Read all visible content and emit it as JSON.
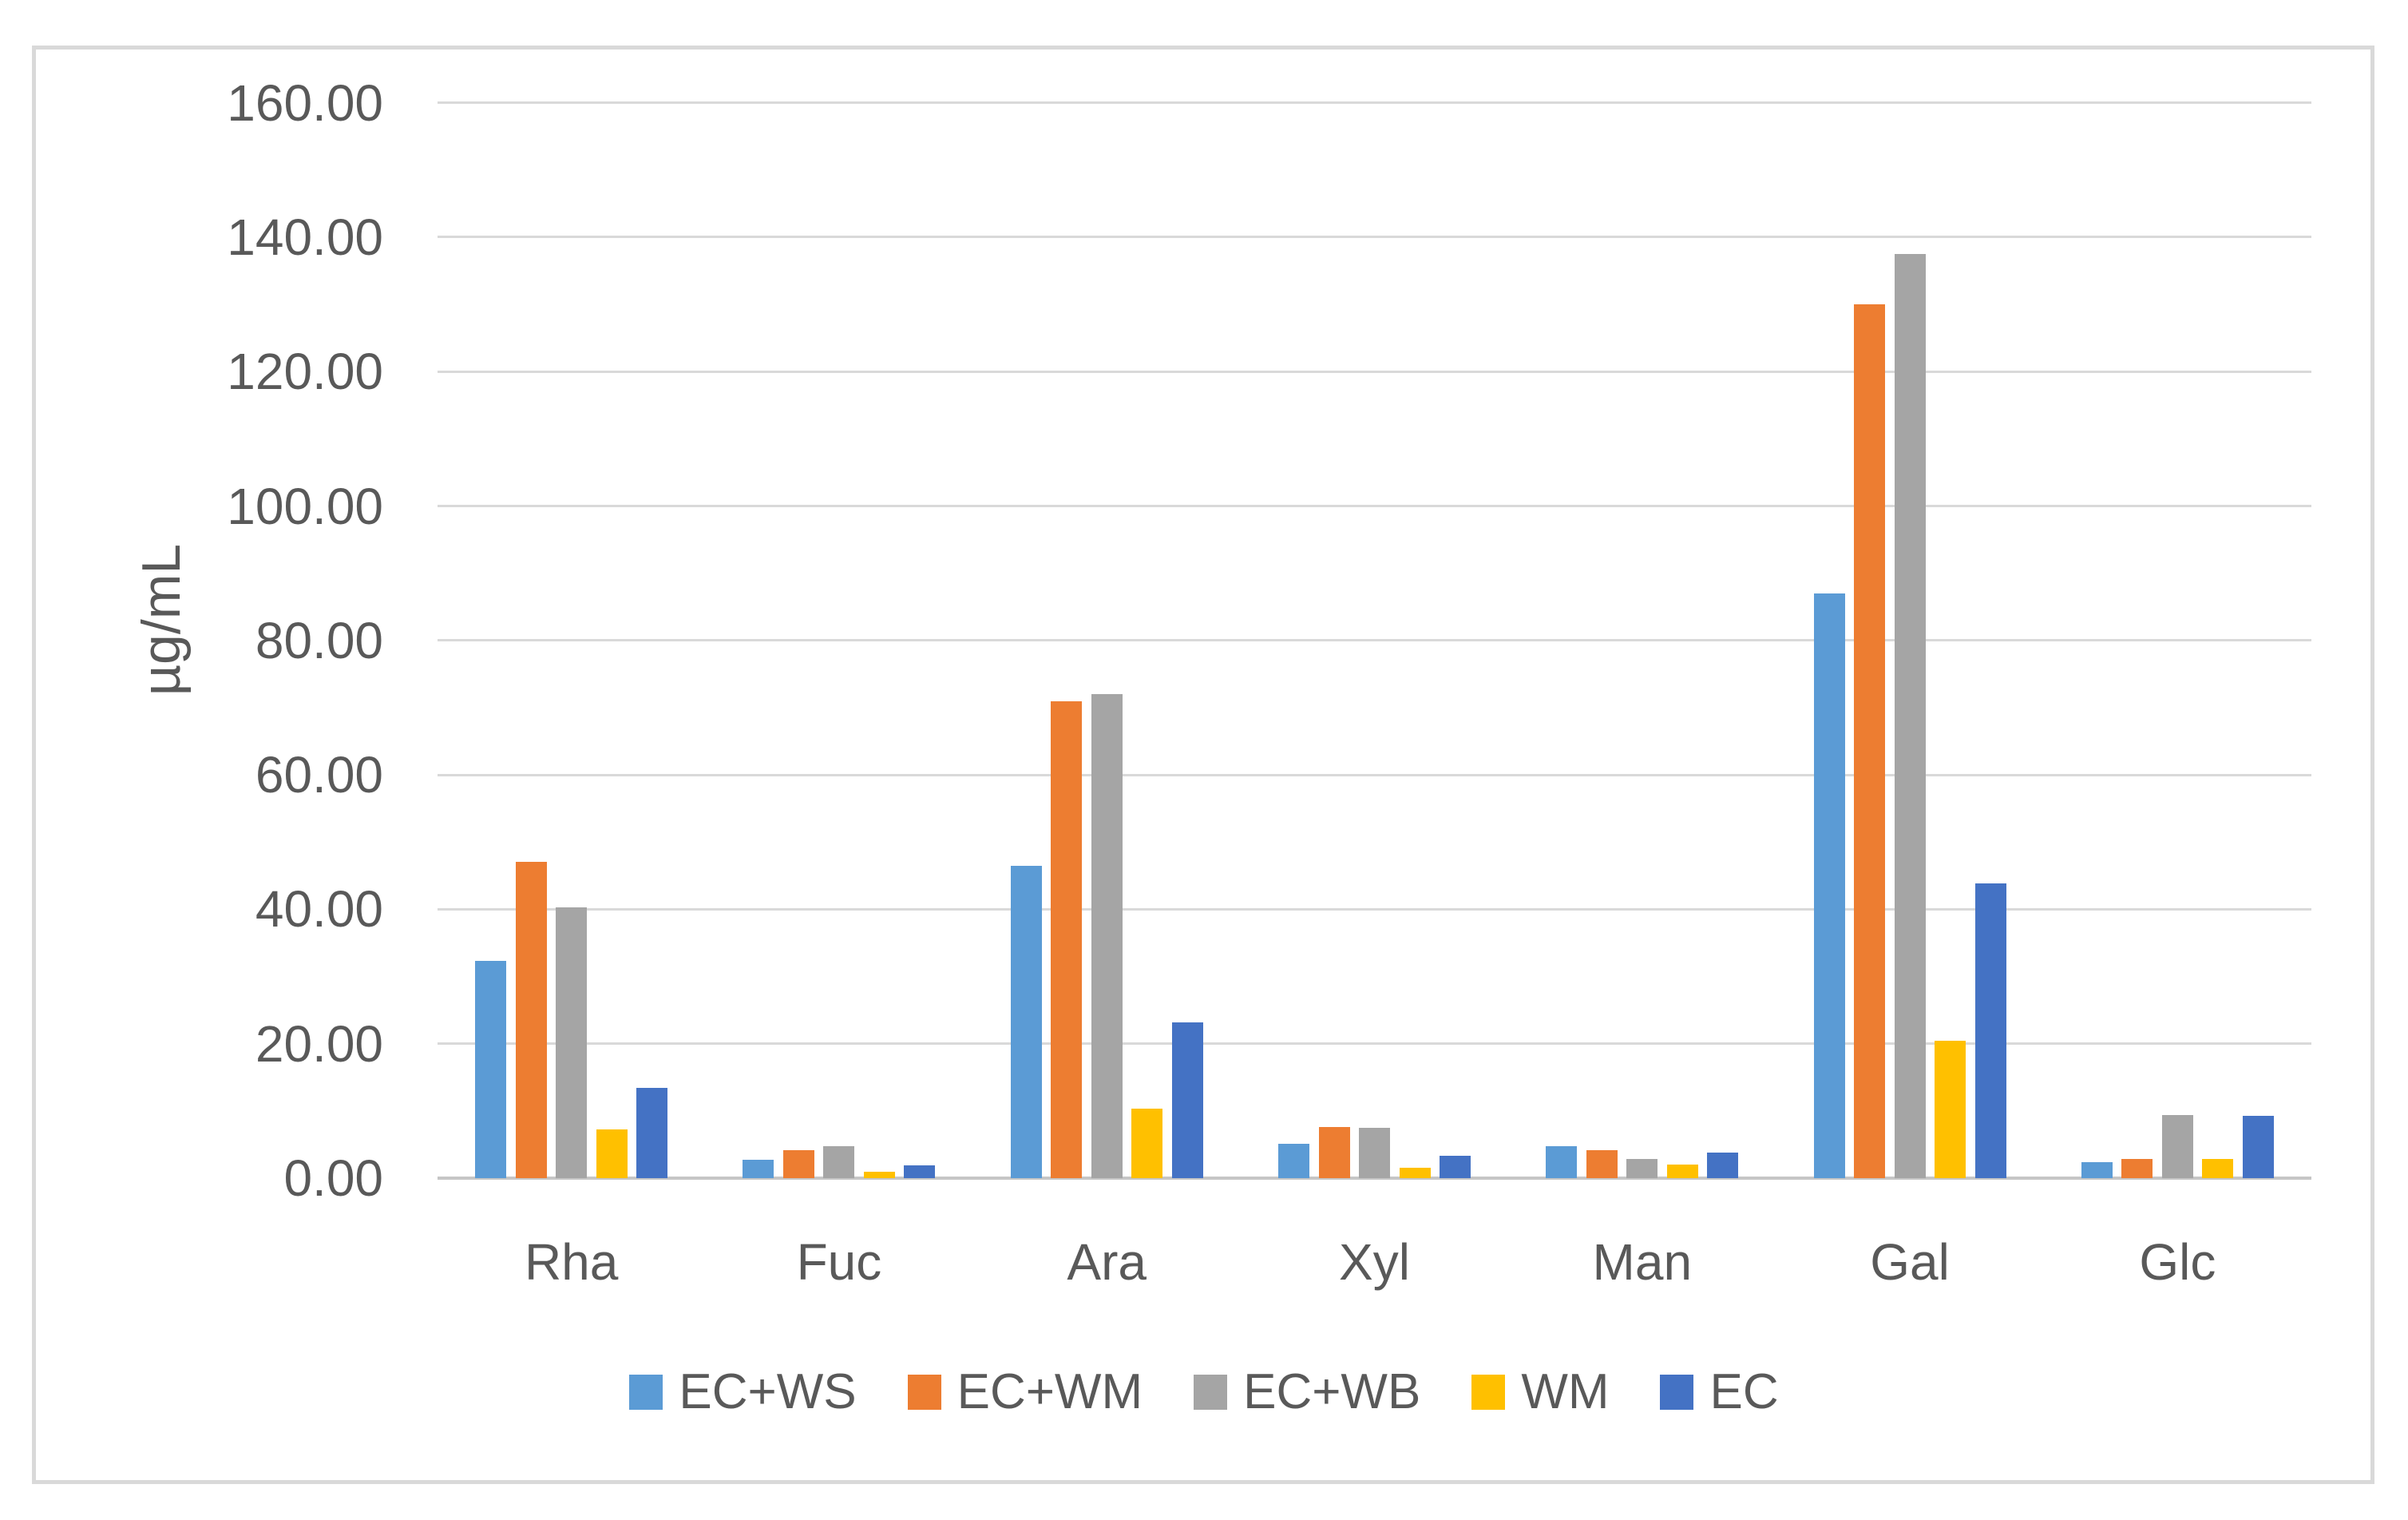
{
  "chart_data": {
    "type": "bar",
    "title": "",
    "ylabel": "µg/mL",
    "xlabel": "",
    "categories": [
      "Rha",
      "Fuc",
      "Ara",
      "Xyl",
      "Man",
      "Gal",
      "Glc"
    ],
    "series": [
      {
        "name": "EC+WS",
        "color": "#5B9BD5",
        "values": [
          32.3,
          2.7,
          46.5,
          5.1,
          4.8,
          87.0,
          2.4
        ]
      },
      {
        "name": "EC+WM",
        "color": "#ED7D31",
        "values": [
          47.0,
          4.1,
          71.0,
          7.6,
          4.2,
          130.0,
          2.9
        ]
      },
      {
        "name": "EC+WB",
        "color": "#A5A5A5",
        "values": [
          40.3,
          4.7,
          72.0,
          7.5,
          2.8,
          137.5,
          9.4
        ]
      },
      {
        "name": "WM",
        "color": "#FFC000",
        "values": [
          7.2,
          1.0,
          10.3,
          1.5,
          2.0,
          20.4,
          2.9
        ]
      },
      {
        "name": "EC",
        "color": "#4472C4",
        "values": [
          13.4,
          1.9,
          23.2,
          3.3,
          3.8,
          43.8,
          9.3
        ]
      }
    ],
    "ylim": [
      0,
      160
    ],
    "ytick_step": 20,
    "ytick_labels": [
      "0.00",
      "20.00",
      "40.00",
      "60.00",
      "80.00",
      "100.00",
      "120.00",
      "140.00",
      "160.00"
    ],
    "grid": true,
    "legend_position": "bottom"
  },
  "style_colors": {
    "gridline": "#D9D9D9",
    "axis_line": "#C6C6C6",
    "text": "#595959",
    "chart_border": "#D9D9D9",
    "background": "#FFFFFF"
  }
}
